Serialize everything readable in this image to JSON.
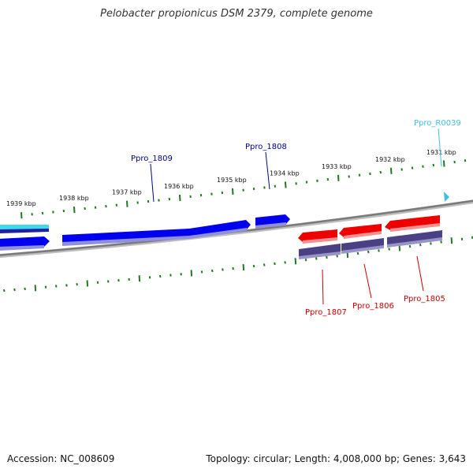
{
  "title": "Pelobacter propionicus DSM 2379, complete genome",
  "footer": {
    "accession": "Accession: NC_008609",
    "summary": "Topology: circular; Length: 4,008,000 bp; Genes: 3,643"
  },
  "colors": {
    "forward_gene": "#0000ee",
    "reverse_gene": "#ee0000",
    "reverse_cds": "#4a4185",
    "rna_gene": "#40c0e0",
    "backbone": "#808080",
    "ticks": "#1f7a1f"
  },
  "ruler": {
    "unit": "kbp",
    "labels": [
      "1939 kbp",
      "1938 kbp",
      "1937 kbp",
      "1936 kbp",
      "1935 kbp",
      "1934 kbp",
      "1933 kbp",
      "1932 kbp",
      "1931 kbp"
    ]
  },
  "genes": [
    {
      "locus": "Ppro_1809",
      "strand": "forward",
      "color": "#00008b"
    },
    {
      "locus": "Ppro_1808",
      "strand": "forward",
      "color": "#00008b"
    },
    {
      "locus": "Ppro_R0039",
      "strand": "forward",
      "color": "#40c0e0"
    },
    {
      "locus": "Ppro_1807",
      "strand": "reverse",
      "color": "#cc0000"
    },
    {
      "locus": "Ppro_1806",
      "strand": "reverse",
      "color": "#cc0000"
    },
    {
      "locus": "Ppro_1805",
      "strand": "reverse",
      "color": "#cc0000"
    }
  ]
}
